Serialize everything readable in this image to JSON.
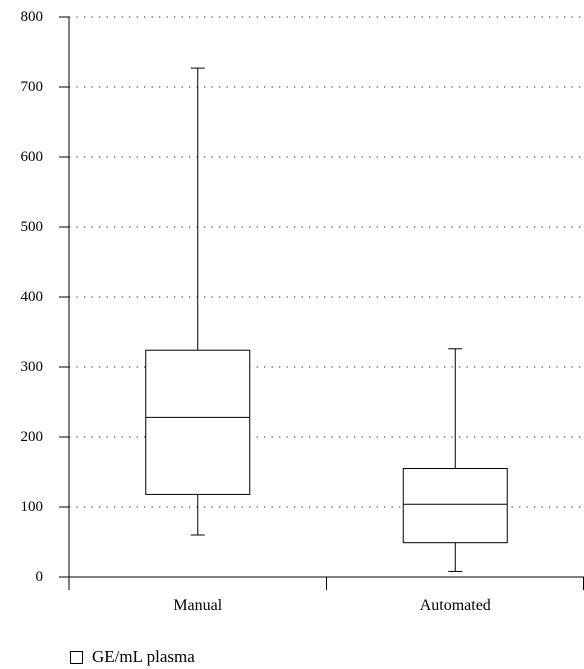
{
  "chart_data": {
    "type": "boxplot",
    "title": "",
    "xlabel": "",
    "ylabel": "",
    "ylim": [
      0,
      800
    ],
    "yticks": [
      "0",
      "100",
      "200",
      "300",
      "400",
      "500",
      "600",
      "700",
      "800"
    ],
    "categories": [
      "Manual",
      "Automated"
    ],
    "series": [
      {
        "name": "GE/mL plasma",
        "boxes": [
          {
            "category": "Manual",
            "min": 60,
            "q1": 118,
            "median": 228,
            "q3": 324,
            "max": 727
          },
          {
            "category": "Automated",
            "min": 8,
            "q1": 49,
            "median": 104,
            "q3": 155,
            "max": 326
          }
        ]
      }
    ],
    "grid": {
      "horizontal": true,
      "style": "dotted"
    },
    "legend_position": "bottom-left",
    "colors": {
      "box_fill": "#ffffff",
      "stroke": "#000000",
      "grid": "#555555"
    }
  }
}
